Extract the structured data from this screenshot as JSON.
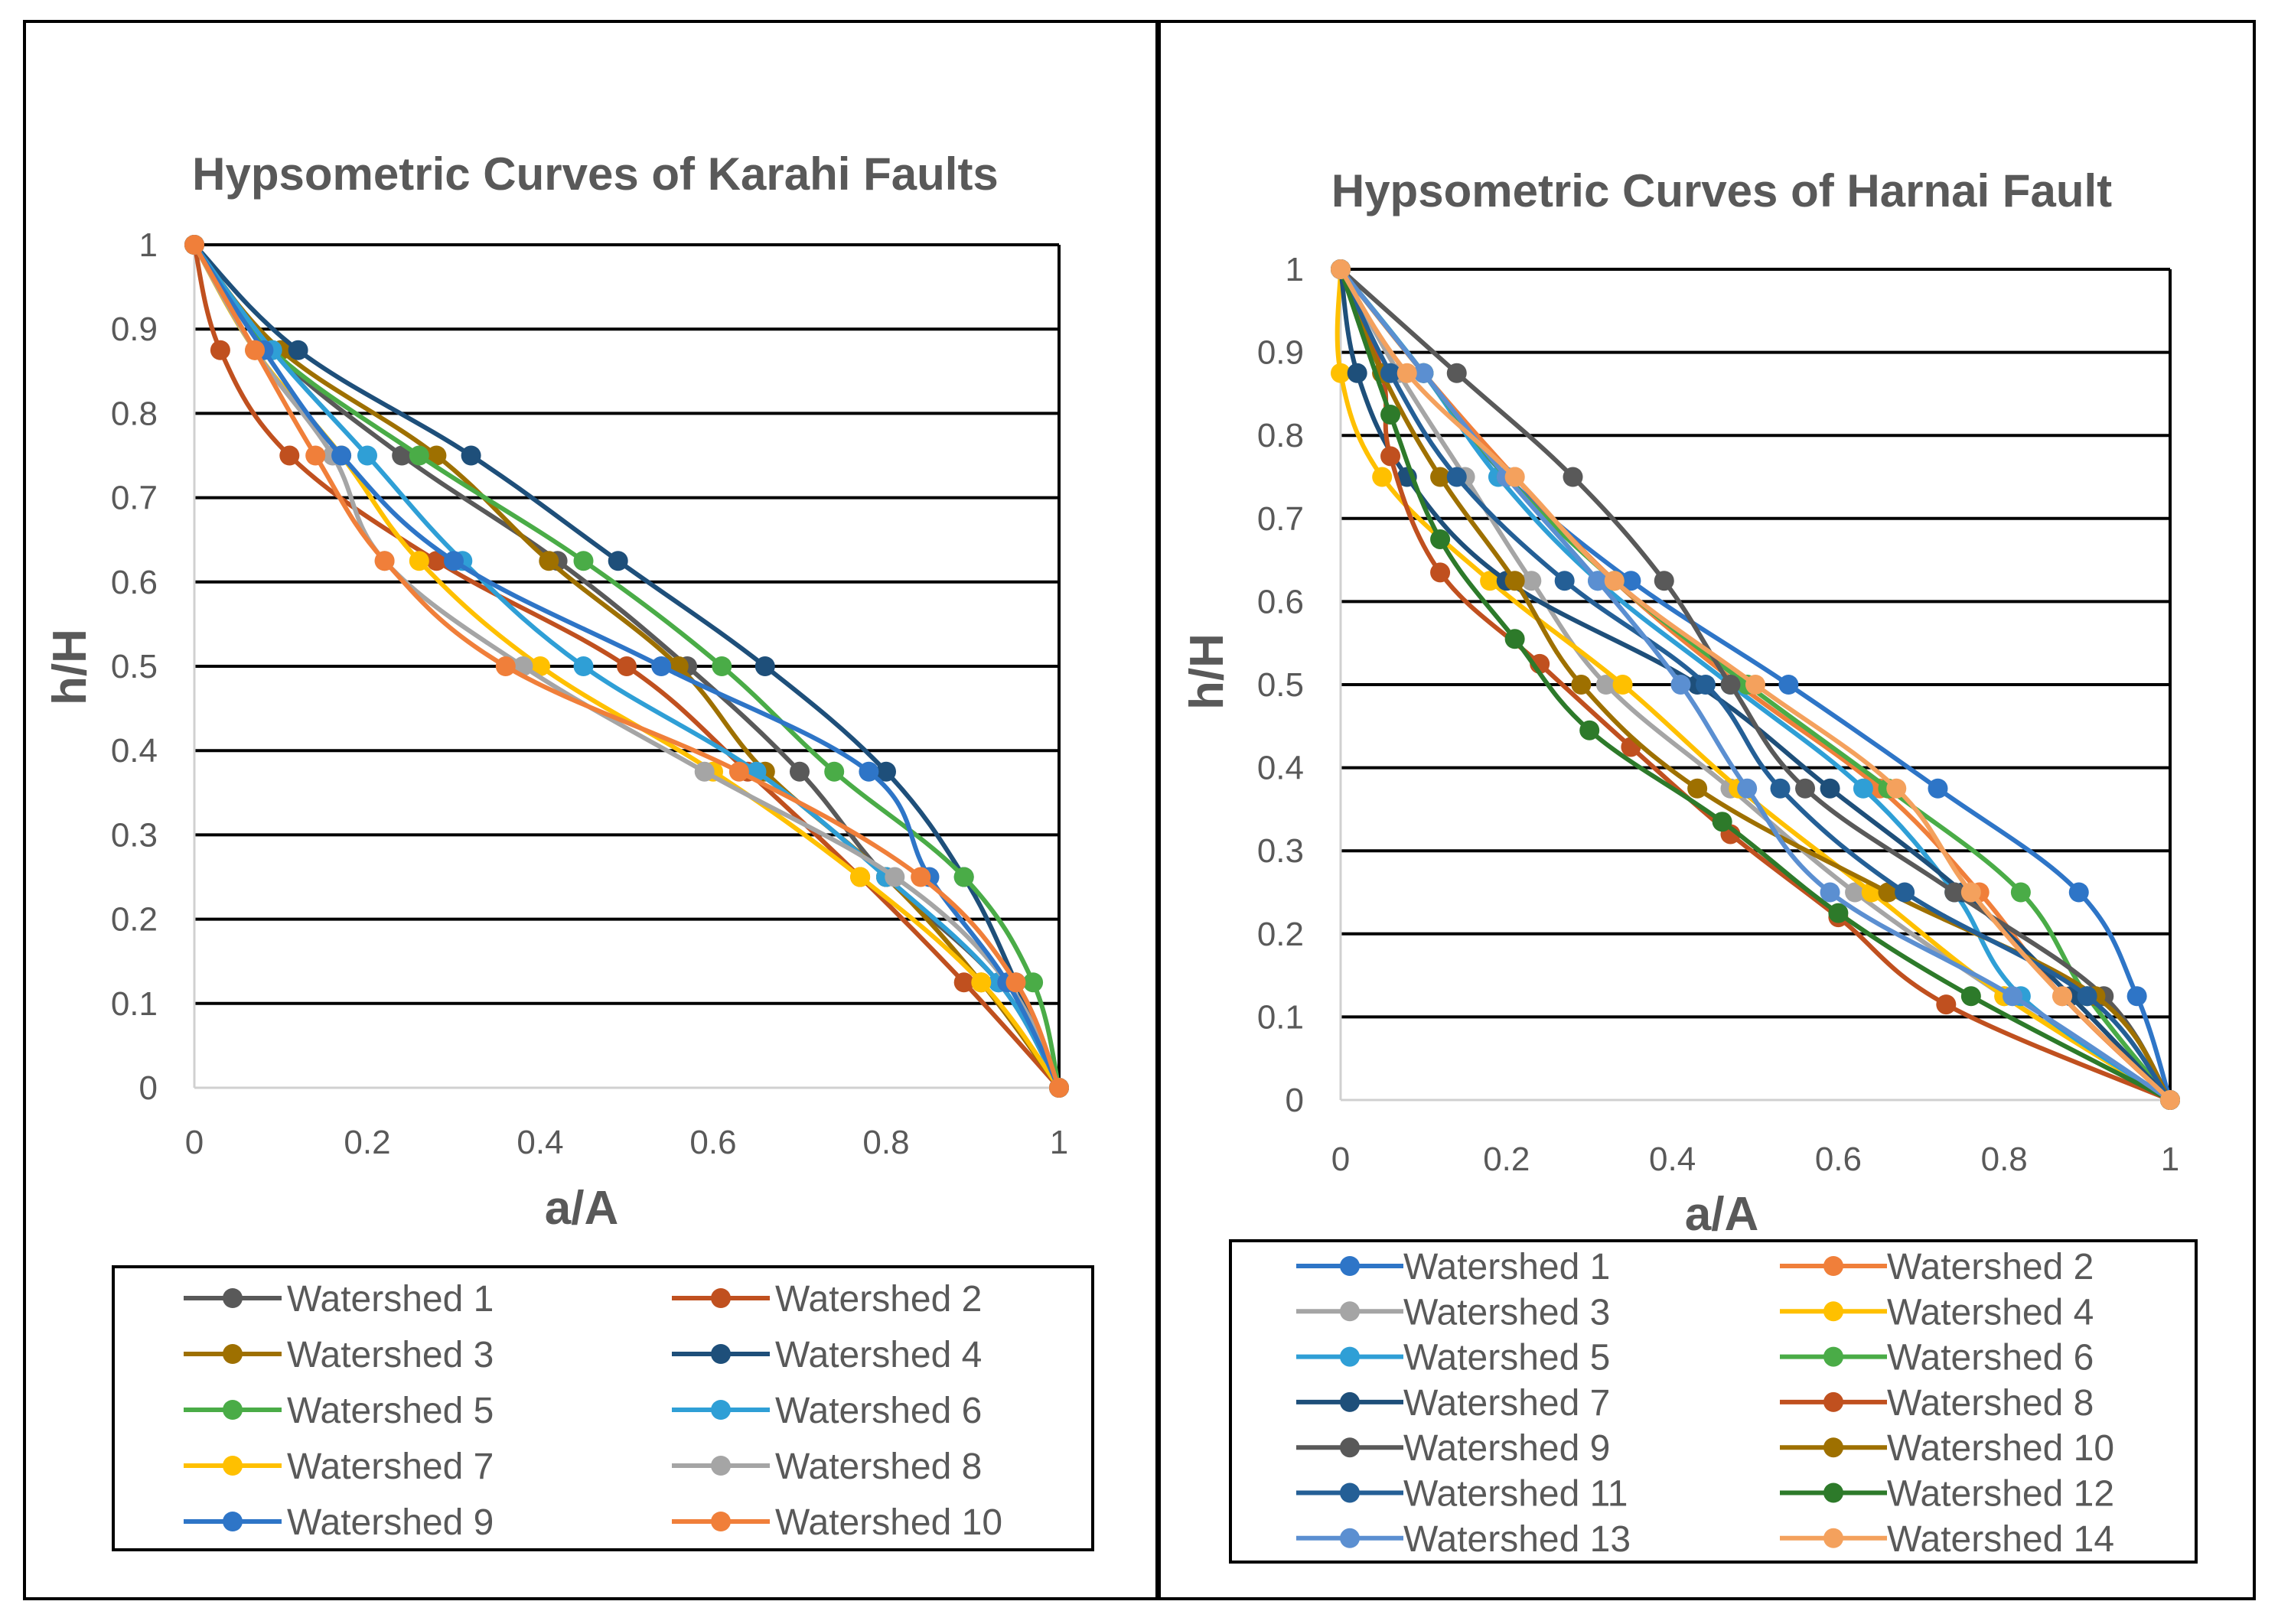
{
  "chart_data": [
    {
      "type": "line",
      "title": "Hypsometric Curves of Karahi Faults",
      "xlabel": "a/A",
      "ylabel": "h/H",
      "xlim": [
        0,
        1
      ],
      "ylim": [
        0,
        1
      ],
      "xticks": [
        "0",
        "0.2",
        "0.4",
        "0.6",
        "0.8",
        "1"
      ],
      "yticks": [
        "0",
        "0.1",
        "0.2",
        "0.3",
        "0.4",
        "0.5",
        "0.6",
        "0.7",
        "0.8",
        "0.9",
        "1"
      ],
      "grid": "horizontal",
      "legend_position": "bottom",
      "series": [
        {
          "name": "Watershed 1",
          "color": "#595959",
          "points": [
            [
              0,
              1
            ],
            [
              0.09,
              0.875
            ],
            [
              0.24,
              0.75
            ],
            [
              0.42,
              0.625
            ],
            [
              0.57,
              0.5
            ],
            [
              0.7,
              0.375
            ],
            [
              0.8,
              0.25
            ],
            [
              0.93,
              0.125
            ],
            [
              1,
              0
            ]
          ]
        },
        {
          "name": "Watershed 2",
          "color": "#c0501f",
          "points": [
            [
              0,
              1
            ],
            [
              0.03,
              0.875
            ],
            [
              0.11,
              0.75
            ],
            [
              0.28,
              0.625
            ],
            [
              0.5,
              0.5
            ],
            [
              0.64,
              0.375
            ],
            [
              0.77,
              0.25
            ],
            [
              0.89,
              0.125
            ],
            [
              1,
              0
            ]
          ]
        },
        {
          "name": "Watershed 3",
          "color": "#9e7000",
          "points": [
            [
              0,
              1
            ],
            [
              0.1,
              0.875
            ],
            [
              0.28,
              0.75
            ],
            [
              0.41,
              0.625
            ],
            [
              0.56,
              0.5
            ],
            [
              0.66,
              0.375
            ],
            [
              0.8,
              0.25
            ],
            [
              0.91,
              0.125
            ],
            [
              1,
              0
            ]
          ]
        },
        {
          "name": "Watershed 4",
          "color": "#1e4f7a",
          "points": [
            [
              0,
              1
            ],
            [
              0.12,
              0.875
            ],
            [
              0.32,
              0.75
            ],
            [
              0.49,
              0.625
            ],
            [
              0.66,
              0.5
            ],
            [
              0.8,
              0.375
            ],
            [
              0.89,
              0.25
            ],
            [
              0.95,
              0.125
            ],
            [
              1,
              0
            ]
          ]
        },
        {
          "name": "Watershed 5",
          "color": "#4aac47",
          "points": [
            [
              0,
              1
            ],
            [
              0.09,
              0.875
            ],
            [
              0.26,
              0.75
            ],
            [
              0.45,
              0.625
            ],
            [
              0.61,
              0.5
            ],
            [
              0.74,
              0.375
            ],
            [
              0.89,
              0.25
            ],
            [
              0.97,
              0.125
            ],
            [
              1,
              0
            ]
          ]
        },
        {
          "name": "Watershed 6",
          "color": "#2f9fd6",
          "points": [
            [
              0,
              1
            ],
            [
              0.09,
              0.875
            ],
            [
              0.2,
              0.75
            ],
            [
              0.31,
              0.625
            ],
            [
              0.45,
              0.5
            ],
            [
              0.65,
              0.375
            ],
            [
              0.8,
              0.25
            ],
            [
              0.93,
              0.125
            ],
            [
              1,
              0
            ]
          ]
        },
        {
          "name": "Watershed 7",
          "color": "#ffc000",
          "points": [
            [
              0,
              1
            ],
            [
              0.07,
              0.875
            ],
            [
              0.17,
              0.75
            ],
            [
              0.26,
              0.625
            ],
            [
              0.4,
              0.5
            ],
            [
              0.6,
              0.375
            ],
            [
              0.77,
              0.25
            ],
            [
              0.91,
              0.125
            ],
            [
              1,
              0
            ]
          ]
        },
        {
          "name": "Watershed 8",
          "color": "#a5a5a5",
          "points": [
            [
              0,
              1
            ],
            [
              0.07,
              0.875
            ],
            [
              0.16,
              0.75
            ],
            [
              0.22,
              0.625
            ],
            [
              0.38,
              0.5
            ],
            [
              0.59,
              0.375
            ],
            [
              0.81,
              0.25
            ],
            [
              0.94,
              0.125
            ],
            [
              1,
              0
            ]
          ]
        },
        {
          "name": "Watershed 9",
          "color": "#2e75c7",
          "points": [
            [
              0,
              1
            ],
            [
              0.08,
              0.875
            ],
            [
              0.17,
              0.75
            ],
            [
              0.3,
              0.625
            ],
            [
              0.54,
              0.5
            ],
            [
              0.78,
              0.375
            ],
            [
              0.85,
              0.25
            ],
            [
              0.94,
              0.125
            ],
            [
              1,
              0
            ]
          ]
        },
        {
          "name": "Watershed 10",
          "color": "#f07f3a",
          "points": [
            [
              0,
              1
            ],
            [
              0.07,
              0.875
            ],
            [
              0.14,
              0.75
            ],
            [
              0.22,
              0.625
            ],
            [
              0.36,
              0.5
            ],
            [
              0.63,
              0.375
            ],
            [
              0.84,
              0.25
            ],
            [
              0.95,
              0.125
            ],
            [
              1,
              0
            ]
          ]
        }
      ]
    },
    {
      "type": "line",
      "title": "Hypsometric Curves of Harnai Fault",
      "xlabel": "a/A",
      "ylabel": "h/H",
      "xlim": [
        0,
        1
      ],
      "ylim": [
        0,
        1
      ],
      "xticks": [
        "0",
        "0.2",
        "0.4",
        "0.6",
        "0.8",
        "1"
      ],
      "yticks": [
        "0",
        "0.1",
        "0.2",
        "0.3",
        "0.4",
        "0.5",
        "0.6",
        "0.7",
        "0.8",
        "0.9",
        "1"
      ],
      "grid": "horizontal",
      "legend_position": "bottom",
      "series": [
        {
          "name": "Watershed 1",
          "color": "#2e75c7",
          "points": [
            [
              0,
              1
            ],
            [
              0.1,
              0.875
            ],
            [
              0.2,
              0.75
            ],
            [
              0.35,
              0.625
            ],
            [
              0.54,
              0.5
            ],
            [
              0.72,
              0.375
            ],
            [
              0.89,
              0.25
            ],
            [
              0.96,
              0.125
            ],
            [
              1,
              0
            ]
          ]
        },
        {
          "name": "Watershed 2",
          "color": "#f07f3a",
          "points": [
            [
              0,
              1
            ],
            [
              0.1,
              0.875
            ],
            [
              0.21,
              0.75
            ],
            [
              0.33,
              0.625
            ],
            [
              0.48,
              0.5
            ],
            [
              0.65,
              0.375
            ],
            [
              0.77,
              0.25
            ],
            [
              0.87,
              0.125
            ],
            [
              1,
              0
            ]
          ]
        },
        {
          "name": "Watershed 3",
          "color": "#a5a5a5",
          "points": [
            [
              0,
              1
            ],
            [
              0.07,
              0.875
            ],
            [
              0.15,
              0.75
            ],
            [
              0.23,
              0.625
            ],
            [
              0.32,
              0.5
            ],
            [
              0.47,
              0.375
            ],
            [
              0.62,
              0.25
            ],
            [
              0.8,
              0.125
            ],
            [
              1,
              0
            ]
          ]
        },
        {
          "name": "Watershed 4",
          "color": "#ffc000",
          "points": [
            [
              0,
              1
            ],
            [
              0,
              0.875
            ],
            [
              0.05,
              0.75
            ],
            [
              0.18,
              0.625
            ],
            [
              0.34,
              0.5
            ],
            [
              0.48,
              0.375
            ],
            [
              0.64,
              0.25
            ],
            [
              0.8,
              0.125
            ],
            [
              1,
              0
            ]
          ]
        },
        {
          "name": "Watershed 5",
          "color": "#2f9fd6",
          "points": [
            [
              0,
              1
            ],
            [
              0.1,
              0.875
            ],
            [
              0.19,
              0.75
            ],
            [
              0.31,
              0.625
            ],
            [
              0.47,
              0.5
            ],
            [
              0.63,
              0.375
            ],
            [
              0.74,
              0.25
            ],
            [
              0.82,
              0.125
            ],
            [
              1,
              0
            ]
          ]
        },
        {
          "name": "Watershed 6",
          "color": "#4aac47",
          "points": [
            [
              0,
              1
            ],
            [
              0.1,
              0.875
            ],
            [
              0.2,
              0.75
            ],
            [
              0.33,
              0.625
            ],
            [
              0.49,
              0.5
            ],
            [
              0.66,
              0.375
            ],
            [
              0.82,
              0.25
            ],
            [
              0.9,
              0.125
            ],
            [
              1,
              0
            ]
          ]
        },
        {
          "name": "Watershed 7",
          "color": "#1e4f7a",
          "points": [
            [
              0,
              1
            ],
            [
              0.02,
              0.875
            ],
            [
              0.08,
              0.75
            ],
            [
              0.2,
              0.625
            ],
            [
              0.43,
              0.5
            ],
            [
              0.59,
              0.375
            ],
            [
              0.75,
              0.25
            ],
            [
              0.88,
              0.125
            ],
            [
              1,
              0
            ]
          ]
        },
        {
          "name": "Watershed 8",
          "color": "#c0501f",
          "points": [
            [
              0,
              1
            ],
            [
              0.05,
              0.875
            ],
            [
              0.06,
              0.775
            ],
            [
              0.12,
              0.635
            ],
            [
              0.24,
              0.525
            ],
            [
              0.35,
              0.425
            ],
            [
              0.47,
              0.32
            ],
            [
              0.6,
              0.22
            ],
            [
              0.73,
              0.115
            ],
            [
              1,
              0
            ]
          ]
        },
        {
          "name": "Watershed 9",
          "color": "#595959",
          "points": [
            [
              0,
              1
            ],
            [
              0.14,
              0.875
            ],
            [
              0.28,
              0.75
            ],
            [
              0.39,
              0.625
            ],
            [
              0.47,
              0.5
            ],
            [
              0.56,
              0.375
            ],
            [
              0.74,
              0.25
            ],
            [
              0.92,
              0.125
            ],
            [
              1,
              0
            ]
          ]
        },
        {
          "name": "Watershed 10",
          "color": "#9e7000",
          "points": [
            [
              0,
              1
            ],
            [
              0.05,
              0.875
            ],
            [
              0.12,
              0.75
            ],
            [
              0.21,
              0.625
            ],
            [
              0.29,
              0.5
            ],
            [
              0.43,
              0.375
            ],
            [
              0.66,
              0.25
            ],
            [
              0.91,
              0.125
            ],
            [
              1,
              0
            ]
          ]
        },
        {
          "name": "Watershed 11",
          "color": "#245f96",
          "points": [
            [
              0,
              1
            ],
            [
              0.06,
              0.875
            ],
            [
              0.14,
              0.75
            ],
            [
              0.27,
              0.625
            ],
            [
              0.44,
              0.5
            ],
            [
              0.53,
              0.375
            ],
            [
              0.68,
              0.25
            ],
            [
              0.9,
              0.125
            ],
            [
              1,
              0
            ]
          ]
        },
        {
          "name": "Watershed 12",
          "color": "#2d7a2a",
          "points": [
            [
              0,
              1
            ],
            [
              0.06,
              0.825
            ],
            [
              0.12,
              0.675
            ],
            [
              0.21,
              0.555
            ],
            [
              0.3,
              0.445
            ],
            [
              0.46,
              0.335
            ],
            [
              0.6,
              0.225
            ],
            [
              0.76,
              0.125
            ],
            [
              1,
              0
            ]
          ]
        },
        {
          "name": "Watershed 13",
          "color": "#5b8fd1",
          "points": [
            [
              0,
              1
            ],
            [
              0.1,
              0.875
            ],
            [
              0.2,
              0.75
            ],
            [
              0.31,
              0.625
            ],
            [
              0.41,
              0.5
            ],
            [
              0.49,
              0.375
            ],
            [
              0.59,
              0.25
            ],
            [
              0.81,
              0.125
            ],
            [
              1,
              0
            ]
          ]
        },
        {
          "name": "Watershed 14",
          "color": "#f4a15d",
          "points": [
            [
              0,
              1
            ],
            [
              0.08,
              0.875
            ],
            [
              0.21,
              0.75
            ],
            [
              0.33,
              0.625
            ],
            [
              0.5,
              0.5
            ],
            [
              0.67,
              0.375
            ],
            [
              0.76,
              0.25
            ],
            [
              0.87,
              0.125
            ],
            [
              1,
              0
            ]
          ]
        }
      ]
    }
  ]
}
